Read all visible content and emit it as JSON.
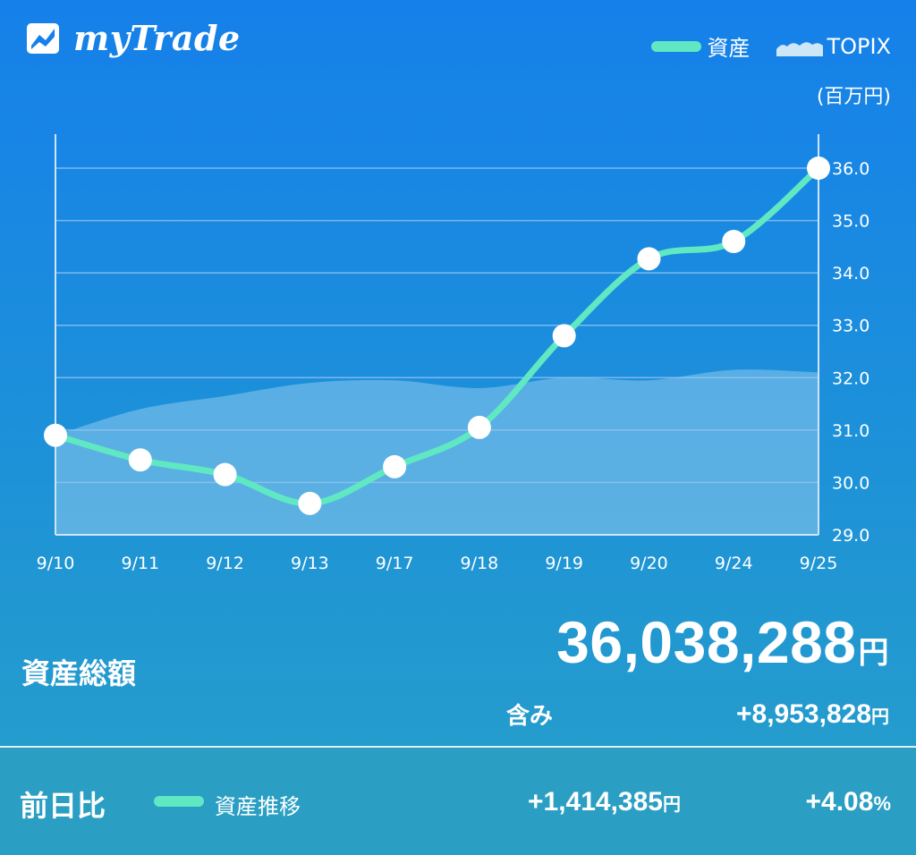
{
  "app": {
    "name": "myTrade"
  },
  "legend": {
    "asset": "資産",
    "topix": "TOPIX"
  },
  "unit": "(百万円)",
  "chart_data": {
    "type": "line",
    "categories": [
      "9/10",
      "9/11",
      "9/12",
      "9/13",
      "9/17",
      "9/18",
      "9/19",
      "9/20",
      "9/24",
      "9/25"
    ],
    "series": [
      {
        "name": "資産",
        "type": "line",
        "values": [
          30.9,
          30.43,
          30.15,
          29.6,
          30.3,
          31.05,
          32.8,
          34.27,
          34.6,
          36.0
        ]
      },
      {
        "name": "TOPIX",
        "type": "area",
        "values": [
          30.9,
          31.4,
          31.65,
          31.9,
          31.95,
          31.8,
          32.0,
          31.95,
          32.15,
          32.1
        ]
      }
    ],
    "ylim": [
      29.0,
      36.0
    ],
    "yticks": [
      "29.0",
      "30.0",
      "31.0",
      "32.0",
      "33.0",
      "34.0",
      "35.0",
      "36.0"
    ],
    "grid": true,
    "colors": {
      "line": "#5fe8c2",
      "area": "#8dc9ec",
      "marker": "#ffffff",
      "grid": "#7fb8ec"
    }
  },
  "summary": {
    "total_label": "資産総額",
    "total_value": "36,038,288",
    "total_unit": "円",
    "included_label": "含み",
    "included_value": "+8,953,828",
    "included_unit": "円"
  },
  "bottom": {
    "prev_label": "前日比",
    "trend_label": "資産推移",
    "diff_value": "+1,414,385",
    "diff_unit": "円",
    "pct_value": "+4.08",
    "pct_unit": "%"
  }
}
